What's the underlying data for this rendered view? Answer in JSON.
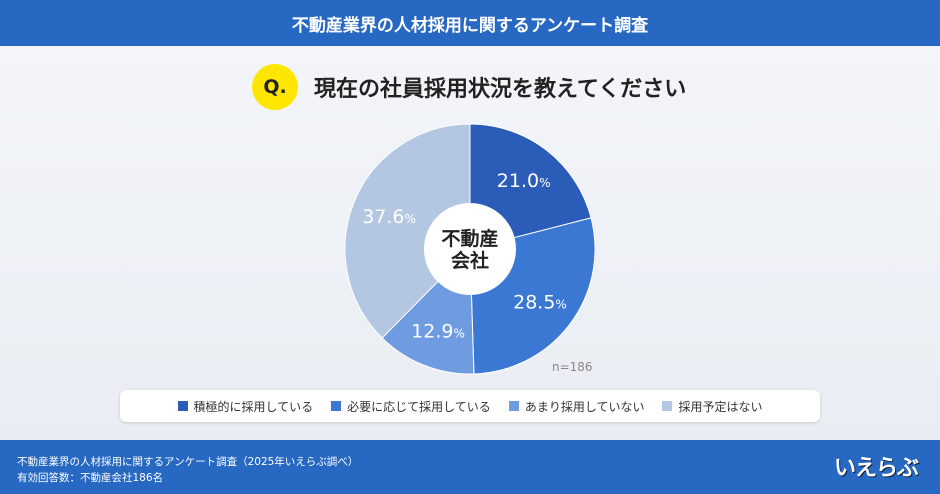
{
  "header": {
    "title": "不動産業界の人材採用に関するアンケート調査"
  },
  "question": {
    "badge": "Q.",
    "text": "現在の社員採用状況を教えてください"
  },
  "chart_data": {
    "type": "pie",
    "title": "現在の社員採用状況を教えてください",
    "center_label": [
      "不動産",
      "会社"
    ],
    "categories": [
      "積極的に採用している",
      "必要に応じて採用している",
      "あまり採用していない",
      "採用予定はない"
    ],
    "values": [
      21.0,
      28.5,
      12.9,
      37.6
    ],
    "value_labels": [
      "21.0",
      "28.5",
      "12.9",
      "37.6"
    ],
    "unit": "%",
    "colors": [
      "#2a5cb8",
      "#3a78d4",
      "#6f9be0",
      "#b3c7e2"
    ],
    "n_label": "n=186",
    "legend_placement": "bottom"
  },
  "footer": {
    "line1": "不動産業界の人材採用に関するアンケート調査（2025年いえらぶ調べ）",
    "line2": "有効回答数：不動産会社186名"
  },
  "logo": {
    "text": "いえらぶ"
  }
}
